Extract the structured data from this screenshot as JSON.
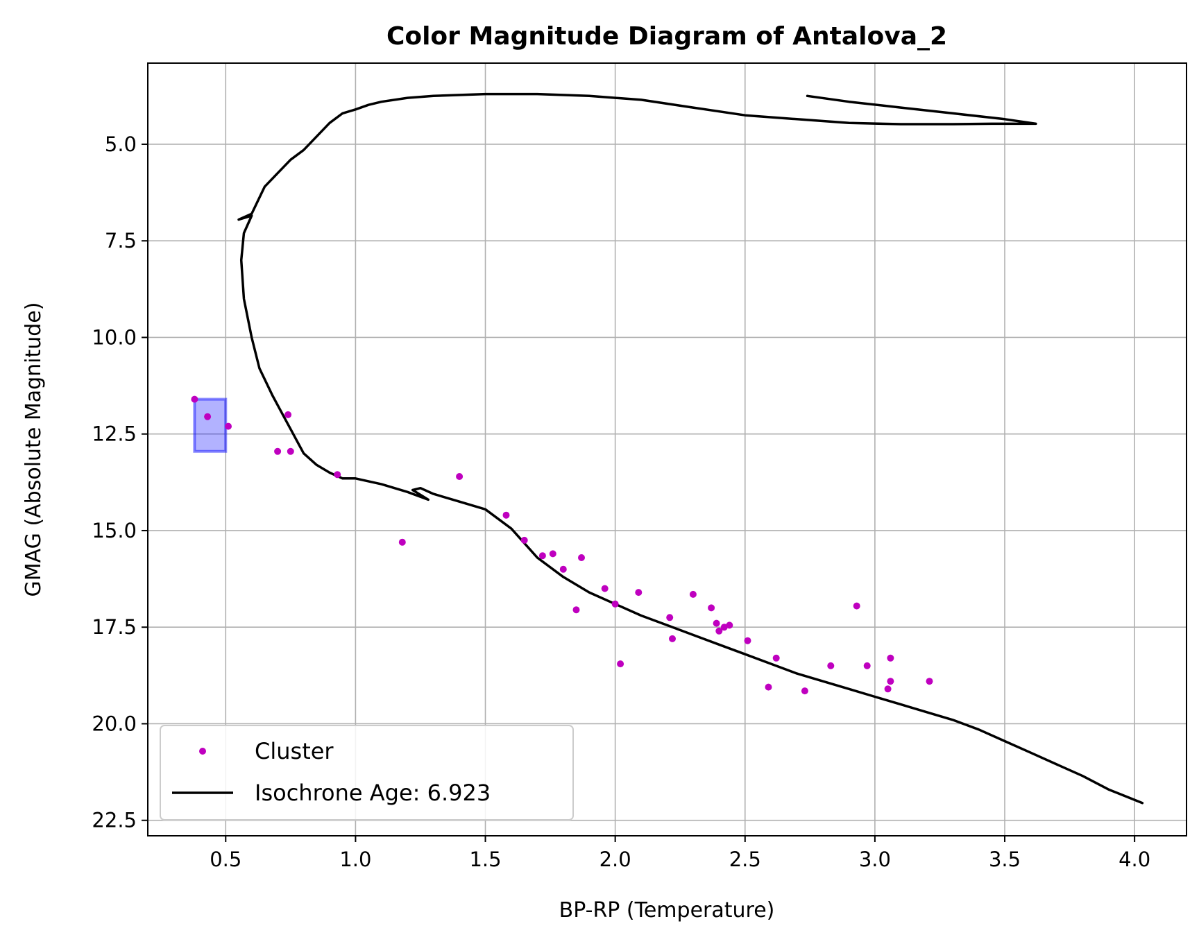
{
  "chart_data": {
    "type": "scatter",
    "title": "Color Magnitude Diagram of Antalova_2",
    "xlabel": "BP-RP (Temperature)",
    "ylabel": "GMAG (Absolute Magnitude)",
    "xlim": [
      0.2,
      4.2
    ],
    "ylim": [
      22.9,
      2.9
    ],
    "y_inverted": true,
    "grid": true,
    "legend_position": "lower-left",
    "xticks": [
      "0.5",
      "1.0",
      "1.5",
      "2.0",
      "2.5",
      "3.0",
      "3.5",
      "4.0"
    ],
    "yticks": [
      "5.0",
      "7.5",
      "10.0",
      "12.5",
      "15.0",
      "17.5",
      "20.0",
      "22.5"
    ],
    "series": [
      {
        "name": "Cluster",
        "kind": "scatter",
        "color": "#bf00bf",
        "points": [
          [
            0.38,
            11.6
          ],
          [
            0.43,
            12.05
          ],
          [
            0.51,
            12.3
          ],
          [
            0.7,
            12.95
          ],
          [
            0.74,
            12.0
          ],
          [
            0.75,
            12.95
          ],
          [
            0.93,
            13.55
          ],
          [
            1.18,
            15.3
          ],
          [
            1.4,
            13.6
          ],
          [
            1.58,
            14.6
          ],
          [
            1.65,
            15.25
          ],
          [
            1.72,
            15.65
          ],
          [
            1.76,
            15.6
          ],
          [
            1.8,
            16.0
          ],
          [
            1.85,
            17.05
          ],
          [
            1.87,
            15.7
          ],
          [
            1.96,
            16.5
          ],
          [
            2.0,
            16.9
          ],
          [
            2.02,
            18.45
          ],
          [
            2.09,
            16.6
          ],
          [
            2.21,
            17.25
          ],
          [
            2.22,
            17.8
          ],
          [
            2.3,
            16.65
          ],
          [
            2.37,
            17.0
          ],
          [
            2.39,
            17.4
          ],
          [
            2.4,
            17.6
          ],
          [
            2.42,
            17.5
          ],
          [
            2.44,
            17.45
          ],
          [
            2.51,
            17.85
          ],
          [
            2.59,
            19.05
          ],
          [
            2.62,
            18.3
          ],
          [
            2.73,
            19.15
          ],
          [
            2.83,
            18.5
          ],
          [
            2.93,
            16.95
          ],
          [
            2.97,
            18.5
          ],
          [
            3.05,
            19.1
          ],
          [
            3.06,
            18.9
          ],
          [
            3.06,
            18.3
          ],
          [
            3.21,
            18.9
          ]
        ]
      },
      {
        "name": "Isochrone Age: 6.923",
        "kind": "line",
        "color": "#000000",
        "points": [
          [
            4.03,
            22.05
          ],
          [
            3.9,
            21.7
          ],
          [
            3.8,
            21.35
          ],
          [
            3.7,
            21.05
          ],
          [
            3.6,
            20.75
          ],
          [
            3.5,
            20.45
          ],
          [
            3.4,
            20.15
          ],
          [
            3.3,
            19.9
          ],
          [
            3.2,
            19.7
          ],
          [
            3.1,
            19.5
          ],
          [
            3.0,
            19.3
          ],
          [
            2.9,
            19.1
          ],
          [
            2.8,
            18.9
          ],
          [
            2.7,
            18.7
          ],
          [
            2.6,
            18.45
          ],
          [
            2.5,
            18.2
          ],
          [
            2.4,
            17.95
          ],
          [
            2.3,
            17.7
          ],
          [
            2.2,
            17.45
          ],
          [
            2.1,
            17.2
          ],
          [
            2.0,
            16.9
          ],
          [
            1.9,
            16.6
          ],
          [
            1.8,
            16.2
          ],
          [
            1.7,
            15.7
          ],
          [
            1.6,
            14.95
          ],
          [
            1.5,
            14.45
          ],
          [
            1.4,
            14.25
          ],
          [
            1.3,
            14.05
          ],
          [
            1.25,
            13.9
          ],
          [
            1.22,
            13.95
          ],
          [
            1.28,
            14.2
          ],
          [
            1.2,
            14.0
          ],
          [
            1.1,
            13.8
          ],
          [
            1.0,
            13.65
          ],
          [
            0.95,
            13.65
          ],
          [
            0.9,
            13.5
          ],
          [
            0.85,
            13.3
          ],
          [
            0.8,
            13.0
          ],
          [
            0.76,
            12.5
          ],
          [
            0.72,
            12.0
          ],
          [
            0.68,
            11.5
          ],
          [
            0.63,
            10.8
          ],
          [
            0.6,
            10.0
          ],
          [
            0.57,
            9.0
          ],
          [
            0.56,
            8.0
          ],
          [
            0.57,
            7.3
          ],
          [
            0.6,
            6.85
          ],
          [
            0.55,
            6.95
          ],
          [
            0.6,
            6.8
          ],
          [
            0.65,
            6.1
          ],
          [
            0.7,
            5.75
          ],
          [
            0.75,
            5.4
          ],
          [
            0.8,
            5.15
          ],
          [
            0.85,
            4.8
          ],
          [
            0.9,
            4.45
          ],
          [
            0.95,
            4.2
          ],
          [
            1.0,
            4.1
          ],
          [
            1.05,
            3.98
          ],
          [
            1.1,
            3.9
          ],
          [
            1.2,
            3.8
          ],
          [
            1.3,
            3.75
          ],
          [
            1.5,
            3.7
          ],
          [
            1.7,
            3.7
          ],
          [
            1.9,
            3.75
          ],
          [
            2.1,
            3.85
          ],
          [
            2.3,
            4.05
          ],
          [
            2.5,
            4.25
          ],
          [
            2.7,
            4.35
          ],
          [
            2.9,
            4.45
          ],
          [
            3.1,
            4.48
          ],
          [
            3.3,
            4.48
          ],
          [
            3.45,
            4.47
          ],
          [
            3.55,
            4.47
          ],
          [
            3.62,
            4.47
          ],
          [
            3.5,
            4.35
          ],
          [
            3.3,
            4.2
          ],
          [
            3.1,
            4.05
          ],
          [
            2.9,
            3.9
          ],
          [
            2.74,
            3.75
          ]
        ]
      }
    ],
    "highlight_box": {
      "xmin": 0.38,
      "xmax": 0.5,
      "ymin": 11.6,
      "ymax": 12.95,
      "color": "#0000ff"
    }
  }
}
